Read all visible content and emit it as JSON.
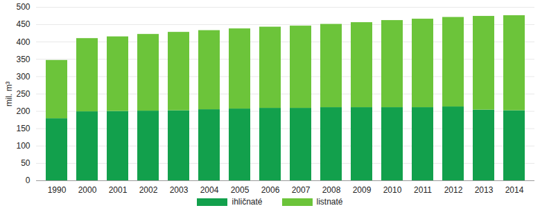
{
  "chart_data": {
    "type": "bar",
    "stacked": true,
    "grid": true,
    "y_label": "mil. m³",
    "categories": [
      "1990",
      "2000",
      "2001",
      "2002",
      "2003",
      "2004",
      "2005",
      "2006",
      "2007",
      "2008",
      "2009",
      "2010",
      "2011",
      "2012",
      "2013",
      "2014"
    ],
    "series": [
      {
        "name": "ihličnaté",
        "color": "#12a04c",
        "values": [
          179,
          199,
          200,
          201,
          202,
          205,
          207,
          209,
          209,
          211,
          211,
          211,
          211,
          213,
          204,
          202
        ]
      },
      {
        "name": "listnaté",
        "color": "#6cc43a",
        "values": [
          168,
          211,
          215,
          221,
          226,
          228,
          231,
          234,
          237,
          240,
          245,
          251,
          255,
          258,
          270,
          274
        ]
      }
    ],
    "ylim": [
      0,
      500
    ],
    "yticks": [
      0,
      50,
      100,
      150,
      200,
      250,
      300,
      350,
      400,
      450,
      500
    ],
    "legend": "bottom"
  }
}
